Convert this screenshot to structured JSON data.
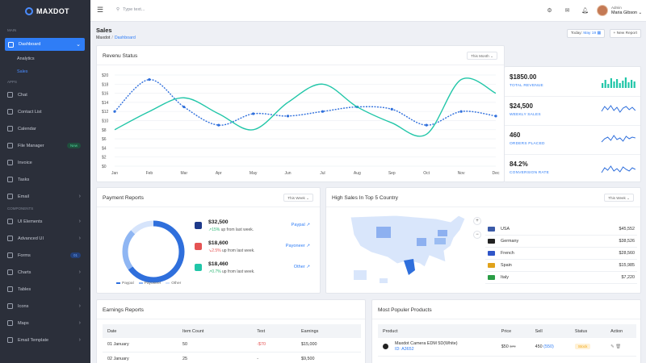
{
  "sidebar": {
    "logo": "MAXDOT",
    "sections": {
      "main": "MAIN",
      "apps": "APPS",
      "components": "COMPONENTS"
    },
    "dashboard": {
      "label": "Dashboard",
      "subitems": [
        "Analytics",
        "Sales"
      ],
      "active_sub": "Sales"
    },
    "apps": [
      {
        "label": "Chat",
        "icon": "chat-icon"
      },
      {
        "label": "Contact List",
        "icon": "contacts-icon"
      },
      {
        "label": "Calendar",
        "icon": "calendar-icon"
      },
      {
        "label": "File Manager",
        "icon": "folder-icon",
        "badge": "New"
      },
      {
        "label": "Invoice",
        "icon": "invoice-icon"
      },
      {
        "label": "Tasks",
        "icon": "tasks-icon"
      },
      {
        "label": "Email",
        "icon": "email-icon",
        "chevron": true
      }
    ],
    "components": [
      {
        "label": "UI Elements",
        "icon": "ui-icon",
        "chevron": true
      },
      {
        "label": "Advanced UI",
        "icon": "advanced-icon",
        "chevron": true
      },
      {
        "label": "Forms",
        "icon": "forms-icon",
        "badge": "01"
      },
      {
        "label": "Charts",
        "icon": "charts-icon",
        "chevron": true
      },
      {
        "label": "Tables",
        "icon": "tables-icon",
        "chevron": true
      },
      {
        "label": "Icons",
        "icon": "icons-icon",
        "chevron": true
      },
      {
        "label": "Maps",
        "icon": "maps-icon",
        "chevron": true
      },
      {
        "label": "Email Template",
        "icon": "template-icon",
        "chevron": true
      }
    ]
  },
  "topbar": {
    "search_placeholder": "Type text...",
    "user_role": "Admin",
    "user_name": "Maria Gibson"
  },
  "page": {
    "title": "Sales",
    "breadcrumb": [
      "Maxdot",
      "Dashboard"
    ],
    "today_label": "Today:",
    "today_value": "May 19",
    "new_report": "New Report"
  },
  "revenue": {
    "title": "Revenu Status",
    "range": "This Month"
  },
  "chart_data": {
    "type": "line",
    "title": "Revenu Status",
    "categories": [
      "Jan",
      "Feb",
      "Mar",
      "Apr",
      "May",
      "Jun",
      "Jul",
      "Aug",
      "Sep",
      "Oct",
      "Nov",
      "Dec"
    ],
    "yticks": [
      "$0",
      "$2",
      "$4",
      "$6",
      "$8",
      "$10",
      "$12",
      "$14",
      "$16",
      "$18",
      "$20"
    ],
    "ylim": [
      0,
      20
    ],
    "grid": true,
    "series": [
      {
        "color": "#2f6fdc",
        "dashed": true,
        "values": [
          12,
          19,
          13,
          9,
          11.5,
          11,
          12,
          13,
          12.5,
          9,
          12,
          11
        ]
      },
      {
        "color": "#21c6a8",
        "dashed": false,
        "values": [
          8,
          12,
          15,
          11.5,
          8,
          14,
          18,
          13,
          9.5,
          7,
          19,
          16
        ]
      }
    ]
  },
  "kpis": [
    {
      "value": "$1850.00",
      "label": "TOTAL REVENUE",
      "spark": "bar"
    },
    {
      "value": "$24,500",
      "label": "WEEKLY SALES",
      "spark": "line"
    },
    {
      "value": "460",
      "label": "ORDERS PLACED",
      "spark": "line"
    },
    {
      "value": "84.2%",
      "label": "CONVERSION RATE",
      "spark": "line"
    }
  ],
  "payment": {
    "title": "Payment Reports",
    "range": "This Week",
    "donut": [
      {
        "name": "Paypal",
        "value": 65,
        "color": "#2f6fdc"
      },
      {
        "name": "Payoneer",
        "value": 22,
        "color": "#8fb6f3"
      },
      {
        "name": "Other",
        "value": 13,
        "color": "#d6e4fb"
      }
    ],
    "rows": [
      {
        "amount": "$32,500",
        "change": "15%",
        "dir": "up",
        "arrow": "↗",
        "rest": "up from last week.",
        "link": "Paypal",
        "icon": "paypal-icon"
      },
      {
        "amount": "$18,600",
        "change": "2.5%",
        "dir": "down",
        "arrow": "↘",
        "rest": "up from last week.",
        "link": "Payoneer",
        "icon": "payoneer-icon"
      },
      {
        "amount": "$18,460",
        "change": "0.7%",
        "dir": "up",
        "arrow": "↗",
        "rest": "up from last week.",
        "link": "Other",
        "icon": "other-icon"
      }
    ]
  },
  "country": {
    "title": "High Sales In Top 5 Country",
    "range": "This Week",
    "rows": [
      {
        "name": "USA",
        "value": "$45,552",
        "flag": "#3b5aa8"
      },
      {
        "name": "Germany",
        "value": "$38,526",
        "flag": "#222"
      },
      {
        "name": "French",
        "value": "$28,560",
        "flag": "#2f55c8"
      },
      {
        "name": "Spain",
        "value": "$15,985",
        "flag": "#e0a21b"
      },
      {
        "name": "Italy",
        "value": "$7,220",
        "flag": "#2a9d45"
      }
    ]
  },
  "earnings": {
    "title": "Earnings Reports",
    "headers": [
      "Date",
      "Item Count",
      "Text",
      "Earnings"
    ],
    "rows": [
      [
        "01 January",
        "50",
        "-$70",
        "$15,000"
      ],
      [
        "02 January",
        "25",
        "-",
        "$9,500"
      ]
    ]
  },
  "products": {
    "title": "Most Populer Products",
    "headers": [
      "Product",
      "Price",
      "Sell",
      "Status",
      "Action"
    ],
    "rows": [
      {
        "name": "Maxdot Camera EDM 5D(White)",
        "id": "ID: A3652",
        "price": "$50",
        "old_price": "$70",
        "sell": "450",
        "sell_extra": "(550)",
        "status": "Stock"
      }
    ]
  }
}
